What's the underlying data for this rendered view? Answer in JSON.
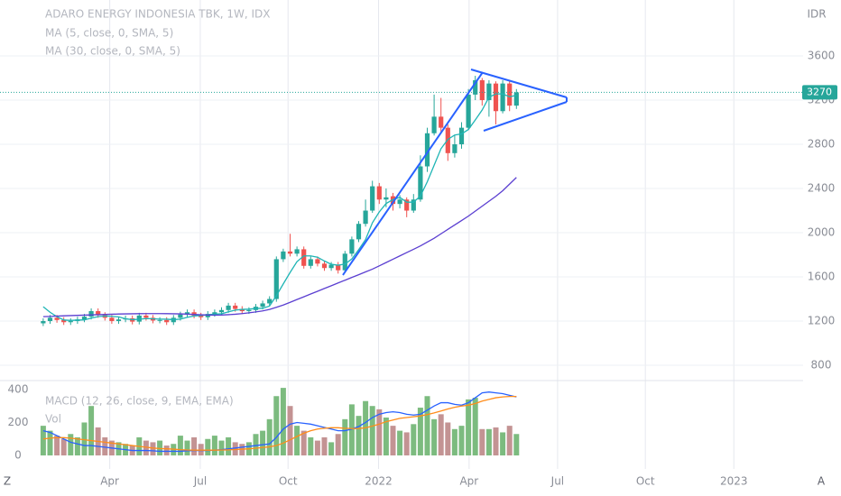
{
  "ui": {
    "left_button": "Z",
    "right_button": "A"
  },
  "chart_data": [
    {
      "type": "candlestick",
      "title": "ADARO ENERGY INDONESIA TBK, 1W, IDX",
      "y_label": "IDR",
      "x": [
        0,
        1,
        2,
        3,
        4,
        5,
        6,
        7,
        8,
        9,
        10,
        11,
        12,
        13,
        14,
        15,
        16,
        17,
        18,
        19,
        20,
        21,
        22,
        23,
        24,
        25,
        26,
        27,
        28,
        29,
        30,
        31,
        32,
        33,
        34,
        35,
        36,
        37,
        38,
        39,
        40,
        41,
        42,
        43,
        44,
        45,
        46,
        47,
        48,
        49,
        50,
        51,
        52,
        53,
        54,
        55,
        56,
        57,
        58,
        59,
        60,
        61,
        62,
        63,
        64,
        65,
        66,
        67,
        68,
        69
      ],
      "open": [
        1180,
        1200,
        1230,
        1210,
        1190,
        1200,
        1215,
        1240,
        1290,
        1255,
        1230,
        1200,
        1215,
        1225,
        1195,
        1250,
        1230,
        1205,
        1210,
        1190,
        1230,
        1260,
        1280,
        1250,
        1235,
        1265,
        1280,
        1300,
        1340,
        1310,
        1290,
        1300,
        1330,
        1360,
        1400,
        1760,
        1830,
        1810,
        1850,
        1700,
        1760,
        1720,
        1680,
        1710,
        1660,
        1810,
        1940,
        2080,
        2200,
        2420,
        2300,
        2330,
        2260,
        2300,
        2200,
        2300,
        2600,
        2900,
        3050,
        2950,
        2720,
        2800,
        2950,
        3250,
        3380,
        3200,
        3350,
        3100,
        3350,
        3150
      ],
      "high": [
        1225,
        1255,
        1255,
        1235,
        1225,
        1240,
        1265,
        1315,
        1315,
        1280,
        1255,
        1240,
        1250,
        1250,
        1275,
        1275,
        1255,
        1235,
        1235,
        1255,
        1285,
        1305,
        1305,
        1275,
        1290,
        1305,
        1325,
        1365,
        1365,
        1335,
        1325,
        1355,
        1385,
        1425,
        1785,
        1855,
        1990,
        1875,
        1875,
        1785,
        1785,
        1745,
        1735,
        1735,
        1835,
        1965,
        2105,
        2300,
        2470,
        2450,
        2400,
        2360,
        2340,
        2320,
        2350,
        2700,
        2950,
        3250,
        3220,
        2980,
        2880,
        3000,
        3300,
        3420,
        3400,
        3380,
        3370,
        3380,
        3370,
        3300
      ],
      "low": [
        1155,
        1175,
        1185,
        1165,
        1165,
        1175,
        1190,
        1215,
        1230,
        1205,
        1175,
        1175,
        1190,
        1170,
        1170,
        1205,
        1180,
        1180,
        1165,
        1165,
        1205,
        1235,
        1225,
        1210,
        1210,
        1240,
        1255,
        1275,
        1285,
        1265,
        1265,
        1275,
        1305,
        1335,
        1375,
        1735,
        1785,
        1785,
        1675,
        1675,
        1695,
        1655,
        1655,
        1630,
        1635,
        1785,
        1915,
        2055,
        2180,
        2260,
        2230,
        2200,
        2220,
        2140,
        2180,
        2280,
        2550,
        2880,
        2900,
        2650,
        2680,
        2760,
        2930,
        3200,
        3150,
        3050,
        2980,
        3080,
        3100,
        3120
      ],
      "close": [
        1200,
        1230,
        1210,
        1190,
        1200,
        1215,
        1240,
        1290,
        1255,
        1230,
        1200,
        1215,
        1225,
        1195,
        1250,
        1230,
        1205,
        1210,
        1190,
        1230,
        1260,
        1280,
        1250,
        1235,
        1265,
        1280,
        1300,
        1340,
        1310,
        1290,
        1300,
        1330,
        1360,
        1400,
        1760,
        1830,
        1810,
        1850,
        1700,
        1760,
        1720,
        1680,
        1710,
        1660,
        1810,
        1940,
        2080,
        2200,
        2420,
        2300,
        2320,
        2260,
        2300,
        2200,
        2300,
        2600,
        2900,
        3050,
        2950,
        2720,
        2800,
        2950,
        3250,
        3380,
        3200,
        3350,
        3100,
        3350,
        3150,
        3270
      ],
      "up_color": "#26a69a",
      "down_color": "#ef5350",
      "series": [
        {
          "name": "MA (5, close, 0, SMA, 5)",
          "color": "#1fb5b5",
          "values": [
            1330,
            1280,
            1240,
            1210,
            1206,
            1209,
            1211,
            1227,
            1240,
            1246,
            1243,
            1238,
            1221,
            1213,
            1217,
            1223,
            1221,
            1218,
            1217,
            1213,
            1218,
            1234,
            1246,
            1251,
            1258,
            1262,
            1266,
            1284,
            1299,
            1306,
            1308,
            1314,
            1316,
            1336,
            1430,
            1536,
            1640,
            1738,
            1790,
            1790,
            1778,
            1744,
            1714,
            1706,
            1716,
            1762,
            1846,
            1938,
            2090,
            2188,
            2264,
            2300,
            2320,
            2276,
            2276,
            2332,
            2460,
            2610,
            2760,
            2844,
            2884,
            2894,
            2934,
            3020,
            3110,
            3226,
            3256,
            3256,
            3230,
            3244
          ]
        },
        {
          "name": "MA (30, close, 0, SMA, 5)",
          "color": "#5b3fd1",
          "values": [
            1240,
            1242,
            1245,
            1248,
            1250,
            1252,
            1254,
            1256,
            1258,
            1260,
            1262,
            1264,
            1265,
            1266,
            1267,
            1268,
            1268,
            1268,
            1267,
            1266,
            1265,
            1263,
            1260,
            1257,
            1255,
            1254,
            1255,
            1258,
            1262,
            1268,
            1275,
            1283,
            1292,
            1305,
            1325,
            1345,
            1370,
            1395,
            1420,
            1445,
            1470,
            1495,
            1520,
            1545,
            1570,
            1595,
            1620,
            1645,
            1670,
            1700,
            1730,
            1760,
            1790,
            1820,
            1850,
            1880,
            1915,
            1950,
            1990,
            2030,
            2070,
            2110,
            2150,
            2195,
            2240,
            2285,
            2330,
            2380,
            2440,
            2500
          ]
        }
      ],
      "last_price": 3270,
      "last_price_color": "#26a69a",
      "xlim": [
        -6.3,
        110.8
      ],
      "ylim": [
        678,
        4106
      ],
      "yticks": [
        800,
        1200,
        1600,
        2000,
        2400,
        2800,
        3200,
        3600
      ],
      "grid": true
    },
    {
      "type": "bar-line",
      "volume": {
        "name": "Vol",
        "up_color": "#7cbb7f",
        "down_color": "#c39393",
        "values": [
          180,
          150,
          120,
          100,
          130,
          110,
          200,
          300,
          170,
          110,
          90,
          80,
          70,
          60,
          110,
          90,
          80,
          90,
          60,
          70,
          120,
          90,
          110,
          70,
          100,
          120,
          90,
          110,
          80,
          70,
          80,
          130,
          150,
          220,
          360,
          410,
          300,
          180,
          150,
          110,
          90,
          110,
          80,
          130,
          220,
          310,
          240,
          330,
          300,
          280,
          230,
          180,
          150,
          140,
          190,
          290,
          360,
          220,
          250,
          200,
          160,
          180,
          340,
          350,
          160,
          160,
          170,
          140,
          180,
          130
        ]
      },
      "macd": {
        "name": "MACD (12, 26, close, 9, EMA, EMA)",
        "macd_color": "#2962ff",
        "signal_color": "#ff8c1a",
        "macd": [
          150,
          140,
          120,
          100,
          80,
          70,
          60,
          60,
          55,
          50,
          45,
          40,
          35,
          30,
          30,
          30,
          28,
          25,
          25,
          25,
          25,
          28,
          30,
          30,
          30,
          32,
          35,
          40,
          45,
          50,
          55,
          60,
          65,
          70,
          110,
          160,
          190,
          200,
          195,
          190,
          180,
          170,
          160,
          150,
          150,
          160,
          175,
          200,
          230,
          250,
          260,
          265,
          260,
          250,
          245,
          250,
          275,
          300,
          320,
          320,
          310,
          305,
          320,
          350,
          380,
          385,
          380,
          375,
          365,
          355
        ],
        "signal": [
          100,
          105,
          108,
          108,
          105,
          100,
          95,
          90,
          85,
          80,
          75,
          70,
          65,
          60,
          55,
          50,
          45,
          42,
          40,
          38,
          35,
          33,
          32,
          32,
          32,
          32,
          33,
          34,
          36,
          38,
          40,
          44,
          48,
          52,
          60,
          75,
          95,
          115,
          135,
          150,
          160,
          165,
          168,
          168,
          165,
          163,
          163,
          168,
          178,
          190,
          205,
          215,
          225,
          230,
          235,
          240,
          248,
          258,
          270,
          282,
          292,
          300,
          305,
          315,
          330,
          340,
          350,
          355,
          358,
          358
        ]
      },
      "xlim": [
        -6.3,
        110.8
      ],
      "ylim": [
        -82,
        438
      ],
      "yticks": [
        0,
        200,
        400
      ],
      "xticks": [
        {
          "value": 9.7,
          "label": "Apr"
        },
        {
          "value": 22.9,
          "label": "Jul"
        },
        {
          "value": 35.7,
          "label": "Oct"
        },
        {
          "value": 48.9,
          "label": "2022"
        },
        {
          "value": 62.1,
          "label": "Apr"
        },
        {
          "value": 75,
          "label": "Jul"
        },
        {
          "value": 87.8,
          "label": "Oct"
        },
        {
          "value": 100.7,
          "label": "2023"
        }
      ],
      "grid": true
    }
  ]
}
